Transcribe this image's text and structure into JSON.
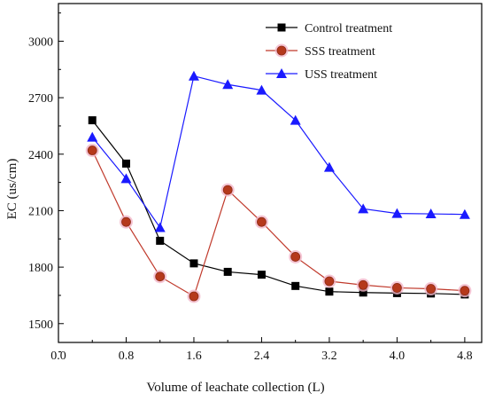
{
  "chart_data": {
    "type": "line",
    "title": "",
    "xlabel": "Volume of leachate collection (L)",
    "ylabel": "EC (us/cm)",
    "xlim": [
      0.0,
      5.0
    ],
    "ylim": [
      1400,
      3200
    ],
    "xticks": [
      "0.0",
      "0.8",
      "1.6",
      "2.4",
      "3.2",
      "4.0",
      "4.8"
    ],
    "yticks": [
      "1500",
      "1800",
      "2100",
      "2400",
      "2700",
      "3000"
    ],
    "legend_position": "top-right",
    "grid": false,
    "x": [
      0.4,
      0.8,
      1.2,
      1.6,
      2.0,
      2.4,
      2.8,
      3.2,
      3.6,
      4.0,
      4.4,
      4.8
    ],
    "series": [
      {
        "name": "Control treatment",
        "color": "#000000",
        "marker": "square",
        "values": [
          2580,
          2350,
          1940,
          1820,
          1775,
          1760,
          1700,
          1670,
          1665,
          1662,
          1660,
          1655
        ]
      },
      {
        "name": "SSS treatment",
        "color": "#c0392b",
        "marker": "circle",
        "values": [
          2420,
          2040,
          1750,
          1645,
          2210,
          2040,
          1855,
          1725,
          1705,
          1690,
          1685,
          1675
        ]
      },
      {
        "name": "USS treatment",
        "color": "#1a1aff",
        "marker": "triangle",
        "values": [
          2490,
          2270,
          2010,
          2815,
          2770,
          2740,
          2580,
          2330,
          2110,
          2085,
          2083,
          2080
        ]
      }
    ]
  }
}
